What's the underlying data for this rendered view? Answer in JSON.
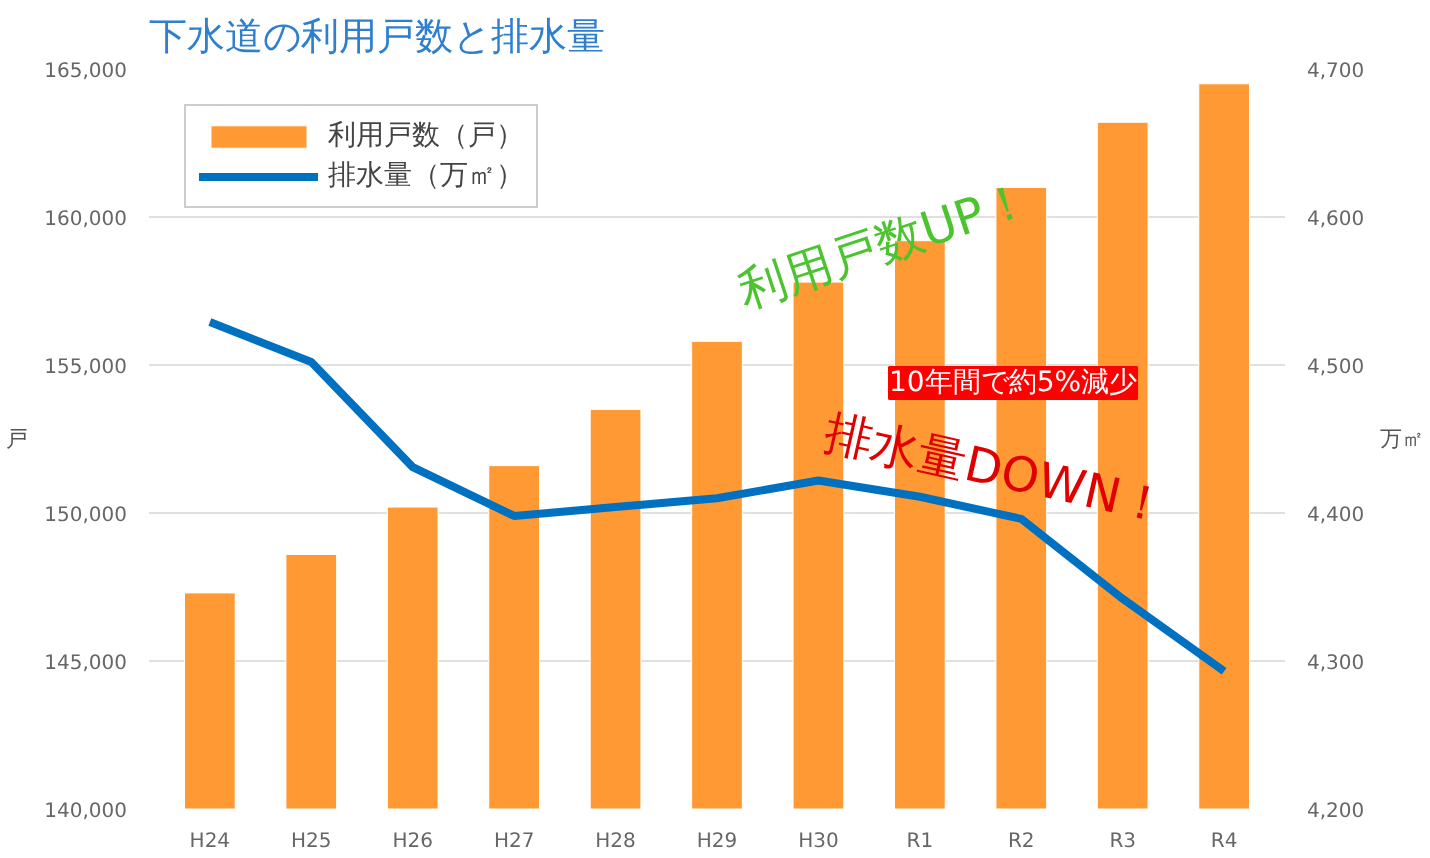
{
  "chart_data": {
    "type": "bar",
    "title": "下水道の利用戸数と排水量",
    "ylabel": "戸",
    "y2label": "万㎡",
    "categories": [
      "H24",
      "H25",
      "H26",
      "H27",
      "H28",
      "H29",
      "H30",
      "R1",
      "R2",
      "R3",
      "R4"
    ],
    "series": [
      {
        "name": "利用戸数（戸）",
        "color": "#ff9933",
        "values": [
          147300,
          148600,
          150200,
          151600,
          153500,
          155800,
          157800,
          159200,
          161000,
          163200,
          164500
        ]
      },
      {
        "name": "排水量（万㎡）",
        "type": "line",
        "axis": "y2",
        "color": "#0070c0",
        "values": [
          4529,
          4502,
          4431,
          4398,
          4404,
          4410,
          4422,
          4411,
          4396,
          4342,
          4293
        ]
      }
    ],
    "ylim": [
      140000,
      165000
    ],
    "yticks": [
      {
        "value": 140000,
        "label": "140,000"
      },
      {
        "value": 145000,
        "label": "145,000"
      },
      {
        "value": 150000,
        "label": "150,000"
      },
      {
        "value": 155000,
        "label": "155,000"
      },
      {
        "value": 160000,
        "label": "160,000"
      },
      {
        "value": 165000,
        "label": "165,000"
      }
    ],
    "y2lim": [
      4200,
      4700
    ],
    "y2ticks": [
      {
        "value": 4200,
        "label": "4,200"
      },
      {
        "value": 4300,
        "label": "4,300"
      },
      {
        "value": 4400,
        "label": "4,400"
      },
      {
        "value": 4500,
        "label": "4,500"
      },
      {
        "value": 4600,
        "label": "4,600"
      },
      {
        "value": 4700,
        "label": "4,700"
      }
    ],
    "grid": "y",
    "legend": "top left",
    "marker": "none",
    "line_style": "solid",
    "annotations": [
      "利用戸数UP！",
      "10年間で約5%減少",
      "排水量DOWN！"
    ]
  }
}
